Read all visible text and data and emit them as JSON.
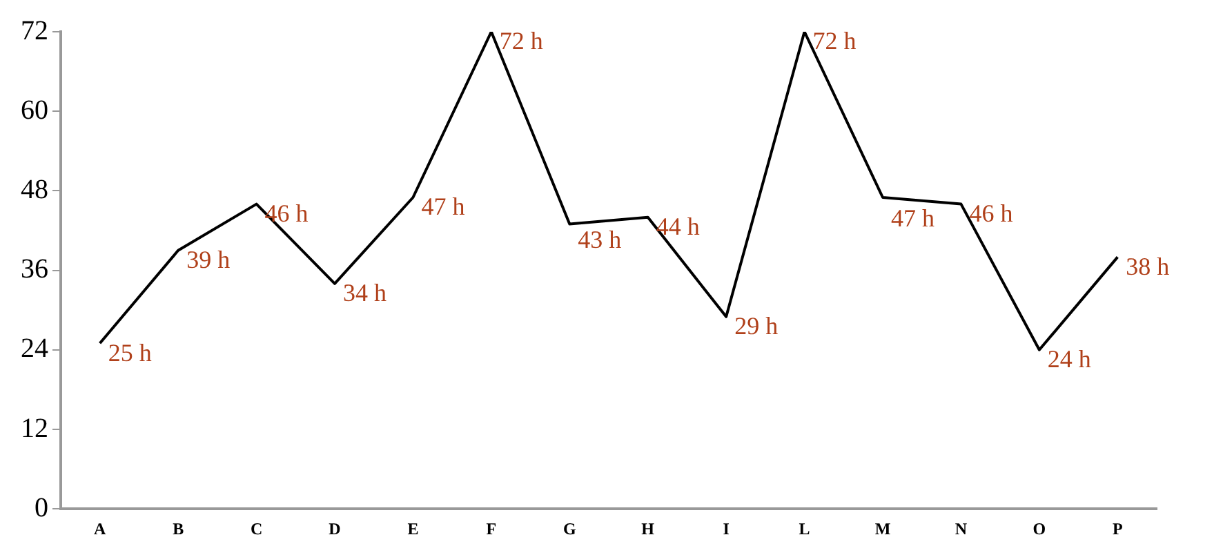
{
  "chart_data": {
    "type": "line",
    "categories": [
      "A",
      "B",
      "C",
      "D",
      "E",
      "F",
      "G",
      "H",
      "I",
      "L",
      "M",
      "N",
      "O",
      "P"
    ],
    "values": [
      25,
      39,
      46,
      34,
      47,
      72,
      43,
      44,
      29,
      72,
      47,
      46,
      24,
      38
    ],
    "value_labels": [
      "25 h",
      "39 h",
      "46 h",
      "34 h",
      "47 h",
      "72 h",
      "43 h",
      "44 h",
      "29 h",
      "72 h",
      "47 h",
      "46 h",
      "24 h",
      "38 h"
    ],
    "color": "#000000",
    "ylim": [
      0,
      72
    ],
    "yticks": [
      0,
      12,
      24,
      36,
      48,
      60,
      72
    ],
    "grid": false,
    "legend": false,
    "marker": "none",
    "line_style": "solid"
  }
}
